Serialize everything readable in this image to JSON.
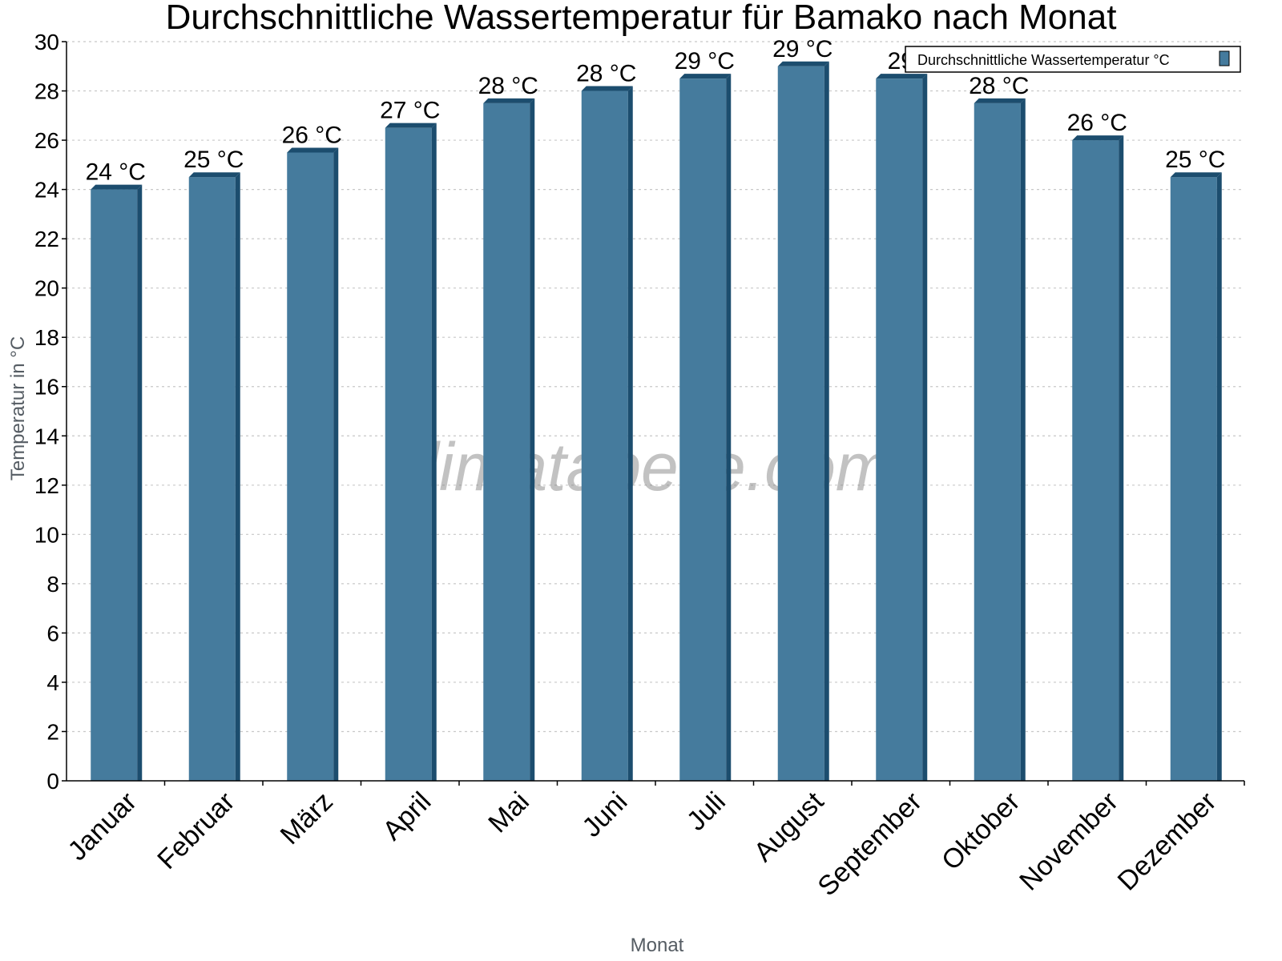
{
  "chart_data": {
    "type": "bar",
    "title": "Durchschnittliche Wassertemperatur für Bamako nach Monat",
    "xlabel": "Monat",
    "ylabel": "Temperatur in °C",
    "ylim": [
      0,
      30
    ],
    "yticks": [
      0,
      2,
      4,
      6,
      8,
      10,
      12,
      14,
      16,
      18,
      20,
      22,
      24,
      26,
      28,
      30
    ],
    "grid": true,
    "legend_position": "top-right",
    "categories": [
      "Januar",
      "Februar",
      "März",
      "April",
      "Mai",
      "Juni",
      "Juli",
      "August",
      "September",
      "Oktober",
      "November",
      "Dezember"
    ],
    "series": [
      {
        "name": "Durchschnittliche Wassertemperatur °C",
        "color": "#457b9d",
        "values": [
          24.0,
          24.5,
          25.5,
          26.5,
          27.5,
          28.0,
          28.5,
          29.0,
          28.5,
          27.5,
          26.0,
          24.5
        ],
        "labels": [
          "24 °C",
          "25 °C",
          "26 °C",
          "27 °C",
          "28 °C",
          "28 °C",
          "29 °C",
          "29 °C",
          "29",
          "28 °C",
          "26 °C",
          "25 °C"
        ]
      }
    ],
    "watermark": "klimatabelle.com"
  }
}
